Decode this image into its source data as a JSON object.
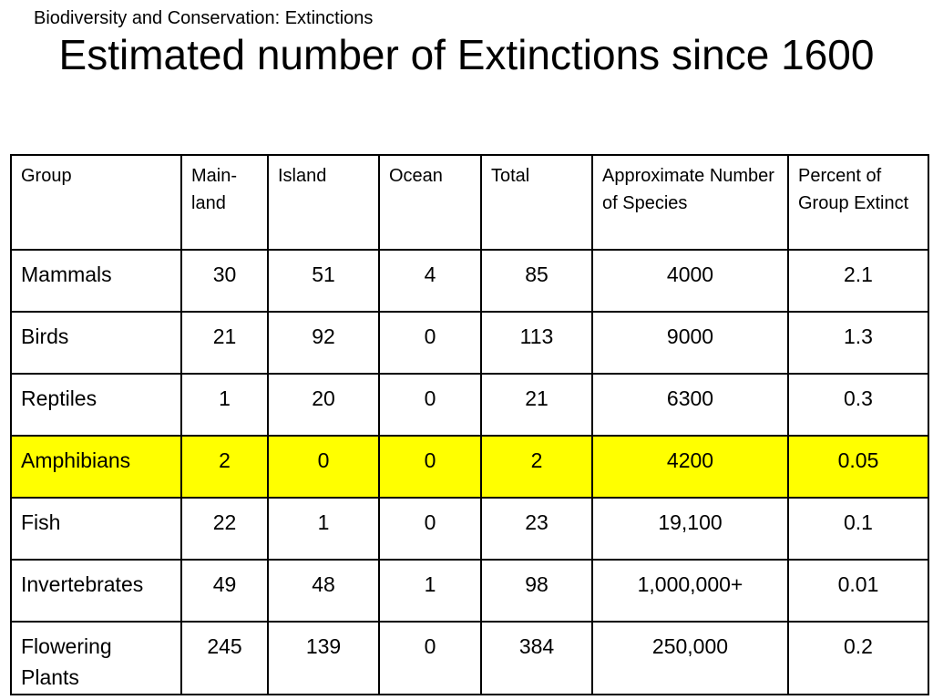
{
  "slide": {
    "header_note": "Biodiversity and Conservation:  Extinctions",
    "title": "Estimated number of Extinctions since 1600"
  },
  "colors": {
    "highlight_row": "#ffff00",
    "border": "#000000"
  },
  "table": {
    "headers": [
      "Group",
      "Main-land",
      "Island",
      "Ocean",
      "Total",
      "Approximate Number of Species",
      "Percent of Group Extinct"
    ],
    "rows": [
      {
        "group": "Mammals",
        "mainland": "30",
        "island": "51",
        "ocean": "4",
        "total": "85",
        "species": "4000",
        "percent": "2.1",
        "highlighted": false
      },
      {
        "group": "Birds",
        "mainland": "21",
        "island": "92",
        "ocean": "0",
        "total": "113",
        "species": "9000",
        "percent": "1.3",
        "highlighted": false
      },
      {
        "group": "Reptiles",
        "mainland": "1",
        "island": "20",
        "ocean": "0",
        "total": "21",
        "species": "6300",
        "percent": "0.3",
        "highlighted": false
      },
      {
        "group": "Amphibians",
        "mainland": "2",
        "island": "0",
        "ocean": "0",
        "total": "2",
        "species": "4200",
        "percent": "0.05",
        "highlighted": true
      },
      {
        "group": "Fish",
        "mainland": "22",
        "island": "1",
        "ocean": "0",
        "total": "23",
        "species": "19,100",
        "percent": "0.1",
        "highlighted": false
      },
      {
        "group": "Invertebrates",
        "mainland": "49",
        "island": "48",
        "ocean": "1",
        "total": "98",
        "species": "1,000,000+",
        "percent": "0.01",
        "highlighted": false
      },
      {
        "group": "Flowering Plants",
        "mainland": "245",
        "island": "139",
        "ocean": "0",
        "total": "384",
        "species": "250,000",
        "percent": "0.2",
        "highlighted": false
      }
    ]
  }
}
